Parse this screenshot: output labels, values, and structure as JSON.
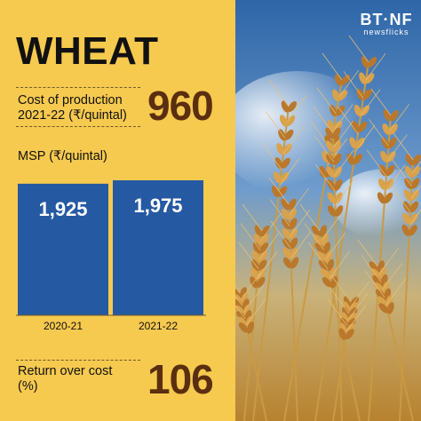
{
  "title": "WHEAT",
  "cost": {
    "label_line1": "Cost of production",
    "label_line2": "2021-22 (₹/quintal)",
    "value": "960"
  },
  "msp": {
    "label": "MSP (₹/quintal)"
  },
  "return_over_cost": {
    "label_line1": "Return over cost",
    "label_line2": "(%)",
    "value": "106"
  },
  "logo": {
    "main": "BT·NF",
    "sub": "newsflicks"
  },
  "colors": {
    "background": "#f6c94f",
    "bar": "#2559a2",
    "number": "#5a2e0e"
  },
  "chart_data": {
    "type": "bar",
    "title": "MSP (₹/quintal)",
    "categories": [
      "2020-21",
      "2021-22"
    ],
    "values": [
      1925,
      1975
    ],
    "value_labels": [
      "1,925",
      "1,975"
    ],
    "ylim": [
      0,
      1975
    ],
    "grid": false
  }
}
